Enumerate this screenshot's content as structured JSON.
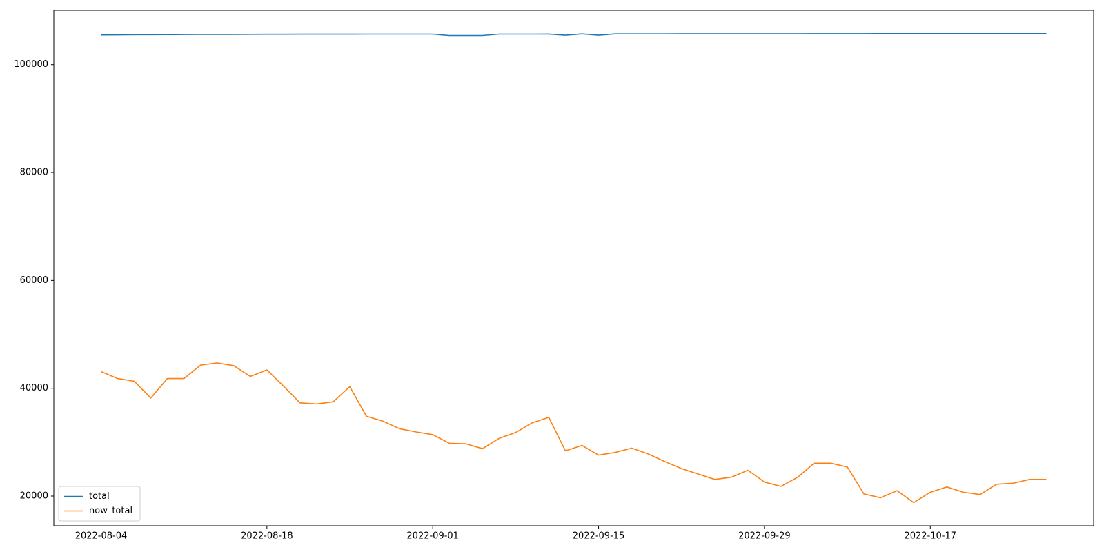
{
  "chart_data": {
    "type": "line",
    "categories": [
      "2022-08-04",
      null,
      null,
      null,
      null,
      null,
      null,
      null,
      null,
      null,
      "2022-08-18",
      null,
      null,
      null,
      null,
      null,
      null,
      null,
      null,
      null,
      "2022-09-01",
      null,
      null,
      null,
      null,
      null,
      null,
      null,
      null,
      null,
      "2022-09-15",
      null,
      null,
      null,
      null,
      null,
      null,
      null,
      null,
      null,
      "2022-09-29",
      null,
      null,
      null,
      null,
      null,
      null,
      null,
      null,
      null,
      "2022-10-17",
      null,
      null,
      null,
      null,
      null,
      null,
      null
    ],
    "series": [
      {
        "name": "total",
        "color": "#1f77b4",
        "values": [
          105500,
          105520,
          105550,
          105560,
          105570,
          105580,
          105590,
          105600,
          105610,
          105620,
          105630,
          105635,
          105640,
          105640,
          105645,
          105645,
          105650,
          105650,
          105650,
          105650,
          105650,
          105400,
          105400,
          105400,
          105650,
          105660,
          105660,
          105670,
          105450,
          105700,
          105450,
          105700,
          105700,
          105700,
          105700,
          105710,
          105710,
          105710,
          105710,
          105720,
          105720,
          105720,
          105720,
          105730,
          105730,
          105730,
          105730,
          105740,
          105740,
          105740,
          105740,
          105740,
          105750,
          105750,
          105750,
          105750,
          105750,
          105750
        ]
      },
      {
        "name": "now_total",
        "color": "#ff7f0e",
        "values": [
          43100,
          41800,
          41300,
          38200,
          41800,
          41800,
          44300,
          44700,
          44200,
          42200,
          43400,
          40400,
          37300,
          37100,
          37500,
          40300,
          34800,
          33900,
          32500,
          31900,
          31400,
          29800,
          29700,
          28800,
          30700,
          31800,
          33600,
          34600,
          28400,
          29400,
          27600,
          28100,
          28900,
          27800,
          26400,
          25100,
          24100,
          23100,
          23500,
          24800,
          22600,
          21800,
          23500,
          26100,
          26100,
          25400,
          20400,
          19700,
          21000,
          18800,
          20700,
          21700,
          20700,
          20300,
          22200,
          22400,
          23100,
          23100
        ]
      }
    ],
    "ylim": [
      14500,
      110070
    ],
    "yticks": [
      20000,
      40000,
      60000,
      80000,
      100000
    ],
    "legend": "lower left",
    "grid": false
  }
}
